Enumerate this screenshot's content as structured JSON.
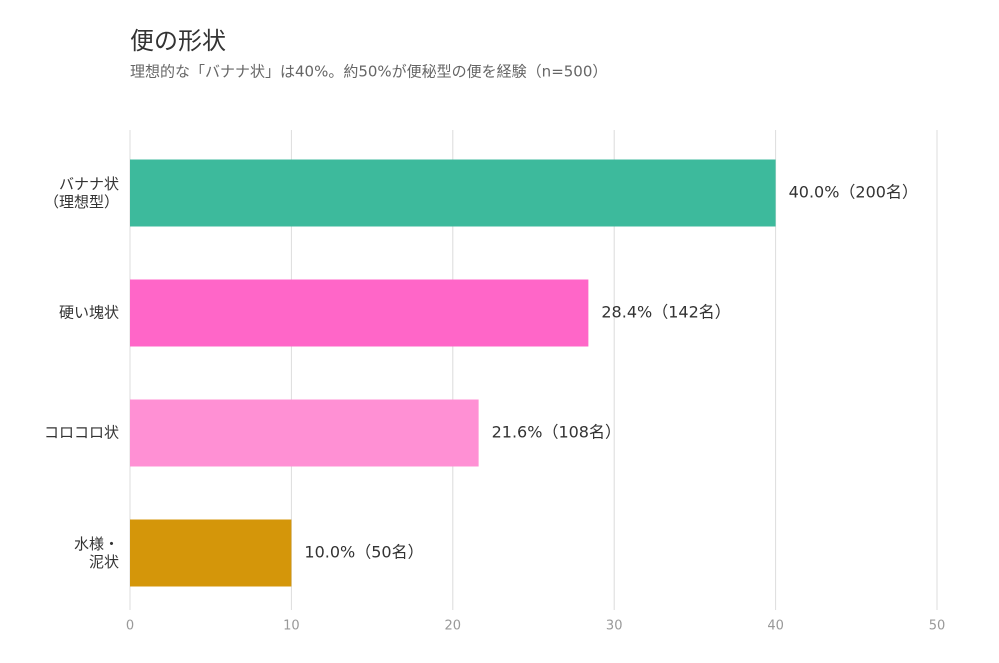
{
  "chart_data": {
    "type": "barh",
    "title": "便の形状",
    "subtitle": "理想的な「バナナ状」は40%。約50%が便秘型の便を経験（n=500）",
    "categories": [
      "バナナ状\n（理想型）",
      "硬い塊状",
      "コロコロ状",
      "水様・\n泥状"
    ],
    "values": [
      40.0,
      28.4,
      21.6,
      10.0
    ],
    "value_labels": [
      "40.0%（200名）",
      "28.4%（142名）",
      "21.6%（108名）",
      "10.0%（50名）"
    ],
    "colors": [
      "#3dba9c",
      "#ff66c8",
      "#ff90d4",
      "#d4960a"
    ],
    "xlim": [
      0,
      50
    ],
    "xticks": [
      0,
      10,
      20,
      30,
      40,
      50
    ],
    "grid": true
  }
}
